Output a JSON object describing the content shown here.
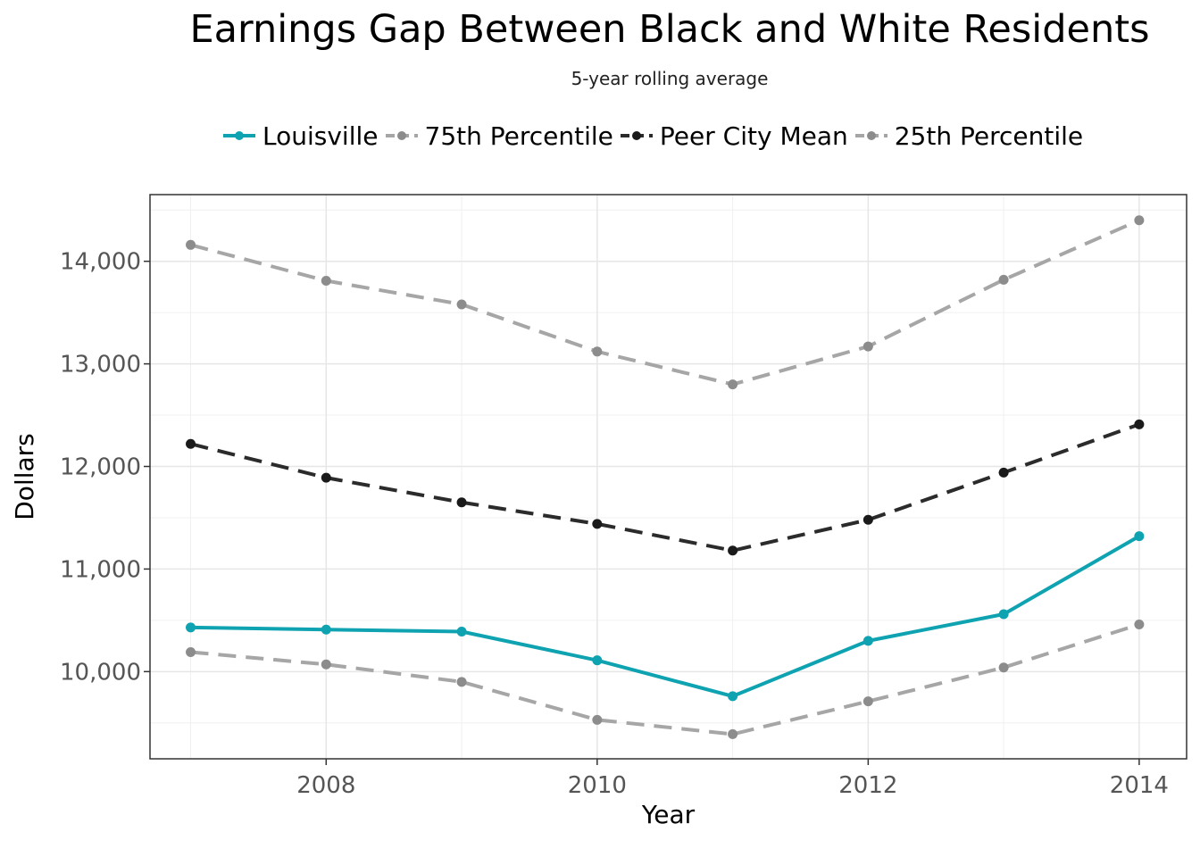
{
  "chart_data": {
    "type": "line",
    "title": "Earnings Gap Between Black and White Residents",
    "subtitle": "5-year rolling average",
    "xlabel": "Year",
    "ylabel": "Dollars",
    "x": [
      2007,
      2008,
      2009,
      2010,
      2011,
      2012,
      2013,
      2014
    ],
    "xlim": [
      2006.7,
      2014.35
    ],
    "ylim": [
      9150,
      14650
    ],
    "xticks": [
      2008,
      2010,
      2012,
      2014
    ],
    "xtick_labels": [
      "2008",
      "2010",
      "2012",
      "2014"
    ],
    "yticks": [
      10000,
      11000,
      12000,
      13000,
      14000
    ],
    "ytick_labels": [
      "10,000",
      "11,000",
      "12,000",
      "13,000",
      "14,000"
    ],
    "grid": true,
    "legend_position": "top",
    "series": [
      {
        "name": "Louisville",
        "color": "#0fa3b1",
        "dashed": false,
        "values": [
          10430,
          10410,
          10390,
          10110,
          9760,
          10300,
          10560,
          11320
        ]
      },
      {
        "name": "75th Percentile",
        "color": "#a6a6a6",
        "dashed": true,
        "values": [
          14160,
          13810,
          13580,
          13120,
          12800,
          13170,
          13820,
          14400
        ]
      },
      {
        "name": "Peer City Mean",
        "color": "#2b2b2b",
        "dashed": true,
        "values": [
          12220,
          11890,
          11650,
          11440,
          11180,
          11480,
          11940,
          12410
        ]
      },
      {
        "name": "25th Percentile",
        "color": "#a6a6a6",
        "dashed": true,
        "values": [
          10190,
          10070,
          9900,
          9530,
          9390,
          9710,
          10040,
          10460
        ]
      }
    ]
  }
}
